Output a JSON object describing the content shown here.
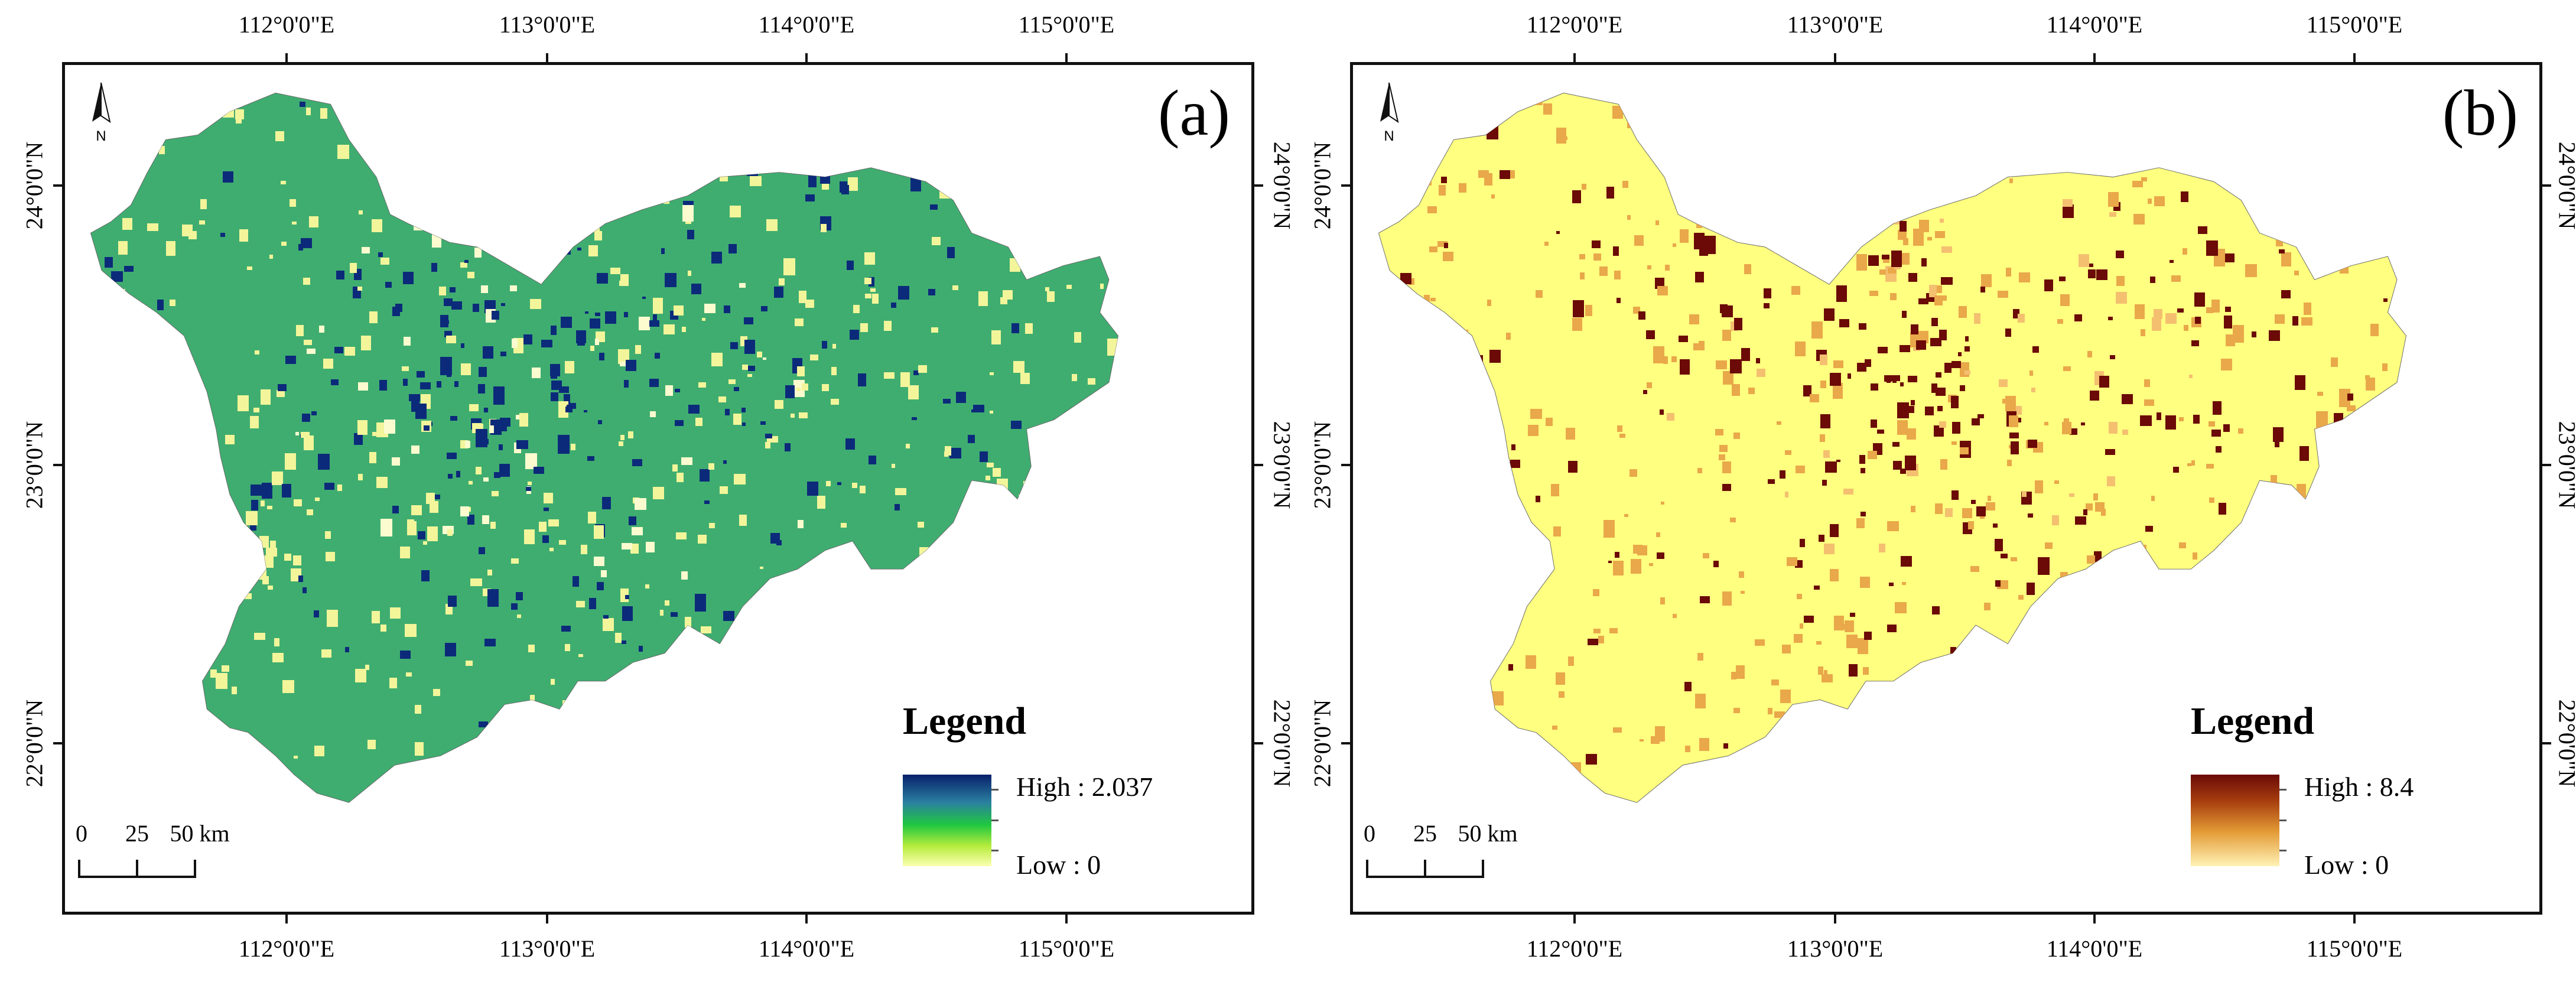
{
  "panels": [
    {
      "id": "a",
      "label": "(a)",
      "lon_labels": [
        "112°0'0\"E",
        "113°0'0\"E",
        "114°0'0\"E",
        "115°0'0\"E"
      ],
      "lat_labels": [
        "24°0'0\"N",
        "23°0'0\"N",
        "22°0'0\"N"
      ],
      "legend": {
        "title": "Legend",
        "high": "High : 2.037",
        "low": "Low : 0"
      },
      "scale_bar": {
        "labels": [
          "0",
          "25",
          "50 km"
        ]
      },
      "north_label": "N",
      "colors": {
        "base": "#3fad70",
        "light": "#f3f59a",
        "dark": "#0c2a7a",
        "urban_light": "#fbfbcf"
      }
    },
    {
      "id": "b",
      "label": "(b)",
      "lon_labels": [
        "112°0'0\"E",
        "113°0'0\"E",
        "114°0'0\"E",
        "115°0'0\"E"
      ],
      "lat_labels": [
        "24°0'0\"N",
        "23°0'0\"N",
        "22°0'0\"N"
      ],
      "legend": {
        "title": "Legend",
        "high": "High : 8.4",
        "low": "Low : 0"
      },
      "scale_bar": {
        "labels": [
          "0",
          "25",
          "50 km"
        ]
      },
      "north_label": "N",
      "colors": {
        "base": "#ffff80",
        "light": "#e9a84a",
        "dark": "#6b0a06",
        "urban_light": "#f4c070"
      }
    }
  ]
}
